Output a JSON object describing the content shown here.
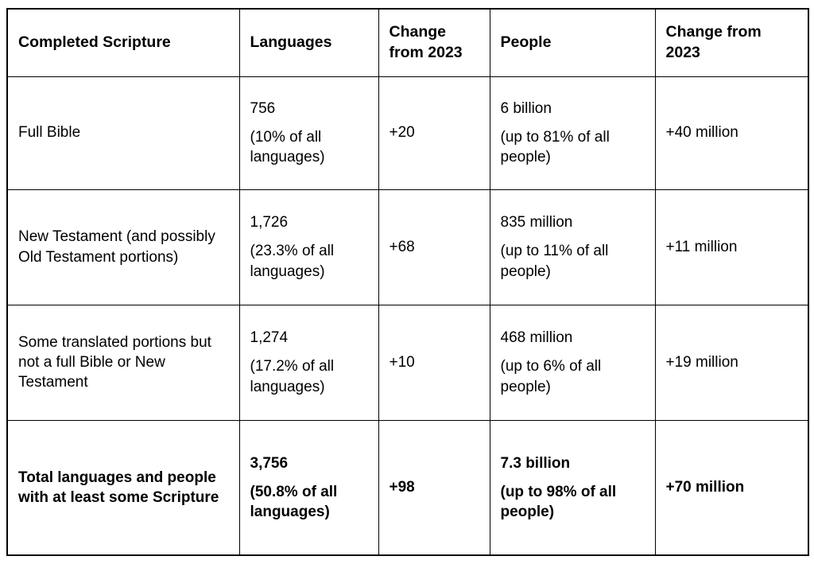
{
  "table": {
    "headers": {
      "scripture": "Completed Scripture",
      "languages": "Languages",
      "languages_change": "Change from 2023",
      "people": "People",
      "people_change": "Change from 2023"
    },
    "rows": [
      {
        "scripture": "Full Bible",
        "languages_value": "756",
        "languages_note": "(10% of all languages)",
        "languages_change": "+20",
        "people_value": "6 billion",
        "people_note": "(up to 81% of all people)",
        "people_change": "+40 million"
      },
      {
        "scripture": "New Testament (and possibly Old Testament portions)",
        "languages_value": "1,726",
        "languages_note": "(23.3% of all languages)",
        "languages_change": "+68",
        "people_value": "835 million",
        "people_note": "(up to 11% of all people)",
        "people_change": "+11 million"
      },
      {
        "scripture": "Some translated portions but not a full Bible or New Testament",
        "languages_value": "1,274",
        "languages_note": "(17.2% of all languages)",
        "languages_change": "+10",
        "people_value": "468 million",
        "people_note": "(up to 6% of all people)",
        "people_change": "+19 million"
      },
      {
        "scripture": "Total languages and people with at least some Scripture",
        "languages_value": "3,756",
        "languages_note": "(50.8% of all languages)",
        "languages_change": "+98",
        "people_value": "7.3 billion",
        "people_note": "(up to 98% of all people)",
        "people_change": "+70 million"
      }
    ]
  }
}
